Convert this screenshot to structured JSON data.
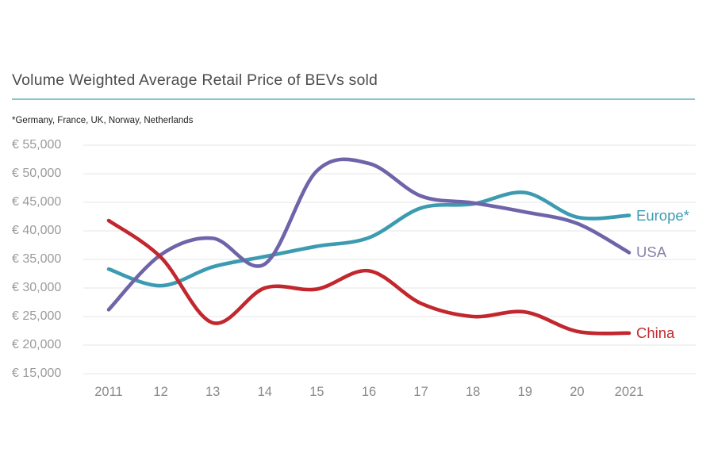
{
  "header": {
    "title": "Volume Weighted Average Retail Price of BEVs sold",
    "footnote": "*Germany, France, UK, Norway, Netherlands",
    "underline_color": "#8cc5cd"
  },
  "chart_data": {
    "type": "line",
    "title": "Volume Weighted Average Retail Price of BEVs sold",
    "subtitle": "*Germany, France, UK, Norway, Netherlands",
    "xlabel": "",
    "ylabel": "",
    "currency": "EUR",
    "grid": "horizontal",
    "grid_color": "#ededed",
    "legend_position": "right-of-line-end",
    "x_categories": [
      "2011",
      "12",
      "13",
      "14",
      "15",
      "16",
      "17",
      "18",
      "19",
      "20",
      "2021"
    ],
    "ylim": [
      15000,
      55000
    ],
    "y_tick_step": 5000,
    "y_tick_labels": [
      "€ 55,000",
      "€ 50,000",
      "€ 45,000",
      "€ 40,000",
      "€ 35,000",
      "€ 30,000",
      "€ 25,000",
      "€ 20,000",
      "€ 15,000"
    ],
    "y_tick_values": [
      55000,
      50000,
      45000,
      40000,
      35000,
      30000,
      25000,
      20000,
      15000
    ],
    "series": [
      {
        "name": "Europe*",
        "color": "#3c9bb1",
        "label_color": "#3d9cb2",
        "values": [
          33300,
          30400,
          33700,
          35500,
          37300,
          38800,
          44000,
          44700,
          46700,
          42400,
          42700
        ]
      },
      {
        "name": "USA",
        "color": "#6e64a9",
        "label_color": "#8781a9",
        "values": [
          26200,
          35800,
          38700,
          34200,
          50500,
          51800,
          46100,
          44900,
          43300,
          41300,
          36200
        ]
      },
      {
        "name": "China",
        "color": "#c2272e",
        "label_color": "#c32b30",
        "values": [
          41800,
          35400,
          23900,
          30000,
          29800,
          33000,
          27300,
          25000,
          25800,
          22400,
          22100
        ]
      }
    ]
  },
  "geometry_note": "y axis spans €15,000 (bottom) to €55,000 (top); x axis years 2011 through 2021"
}
